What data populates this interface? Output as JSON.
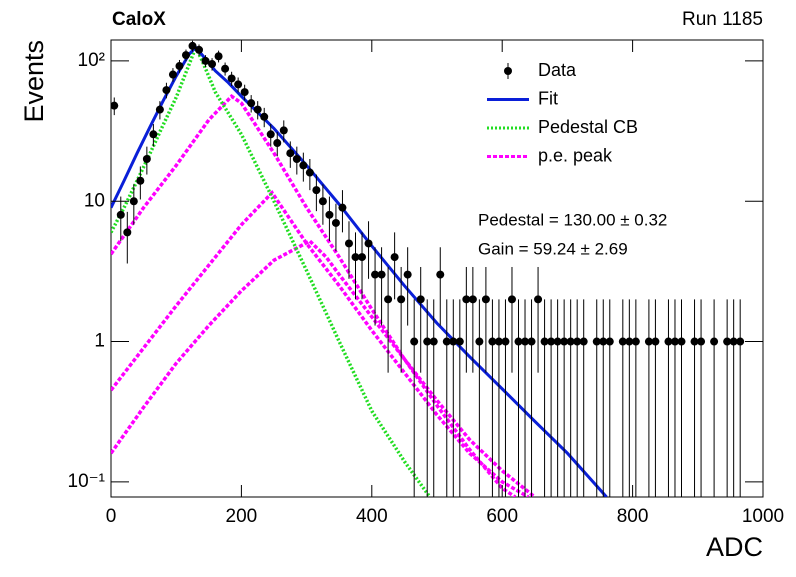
{
  "chart_data": {
    "type": "histogram-fit",
    "title": "CaloX",
    "subtitle": "Run 1185",
    "x_label": "ADC",
    "y_label": "Events",
    "annotations": [
      "Pedestal = 130.00 ± 0.32",
      "Gain = 59.24 ± 2.69"
    ],
    "log_y": true,
    "xlim": [
      0,
      1000
    ],
    "xticks": [
      0,
      200,
      400,
      600,
      800,
      1000
    ],
    "ylim": [
      0.078,
      141
    ],
    "yticks": [
      {
        "value": 0.1,
        "label": "10⁻¹"
      },
      1,
      10,
      {
        "value": 100,
        "label": "10²"
      }
    ],
    "series": [
      {
        "name": "Data",
        "style": "points",
        "color": "#000000",
        "x": [
          5,
          15,
          25,
          35,
          45,
          55,
          65,
          75,
          85,
          95,
          105,
          115,
          125,
          135,
          145,
          155,
          165,
          175,
          185,
          195,
          205,
          215,
          225,
          235,
          245,
          255,
          265,
          275,
          285,
          295,
          305,
          315,
          325,
          335,
          345,
          355,
          365,
          375,
          385,
          395,
          405,
          415,
          425,
          435,
          445,
          455,
          465,
          475,
          485,
          495,
          505,
          515,
          525,
          535,
          545,
          555,
          565,
          575,
          585,
          595,
          605,
          615,
          625,
          635,
          645,
          655,
          665,
          675,
          685,
          695,
          705,
          715,
          725,
          735,
          745,
          755,
          765,
          775,
          785,
          795,
          805,
          815,
          825,
          835,
          845,
          855,
          865,
          875,
          885,
          895,
          905,
          915,
          925,
          935,
          945,
          955,
          965,
          975,
          985,
          995
        ],
        "values": [
          48,
          8,
          6,
          10,
          14,
          20,
          30,
          45,
          62,
          80,
          92,
          110,
          128,
          120,
          100,
          95,
          108,
          88,
          75,
          68,
          60,
          50,
          45,
          40,
          30,
          26,
          32,
          22,
          20,
          18,
          16,
          12,
          10,
          8,
          7,
          9,
          5,
          4,
          4,
          5,
          3,
          3,
          2,
          4,
          2,
          3,
          1,
          2,
          1,
          1,
          3,
          1,
          1,
          1,
          2,
          2,
          1,
          2,
          1,
          1,
          1,
          2,
          1,
          1,
          1,
          2,
          1,
          1,
          1,
          1,
          1,
          1,
          1,
          null,
          1,
          1,
          1,
          null,
          1,
          1,
          1,
          null,
          1,
          1,
          null,
          1,
          1,
          1,
          null,
          1,
          1,
          null,
          1,
          null,
          1,
          1,
          1,
          null,
          null,
          null
        ],
        "errors": [
          6.9,
          2.8,
          2.4,
          3.2,
          3.7,
          4.5,
          5.5,
          6.7,
          7.9,
          8.9,
          9.6,
          10.5,
          11.3,
          11,
          10,
          9.7,
          10.4,
          9.4,
          8.7,
          8.2,
          7.7,
          7.1,
          6.7,
          6.3,
          5.5,
          5.1,
          5.7,
          4.7,
          4.5,
          4.2,
          4,
          3.5,
          3.2,
          2.8,
          2.6,
          3,
          2.2,
          2,
          2,
          2.2,
          1.7,
          1.7,
          1.4,
          2,
          1.4,
          1.7,
          1,
          1.4,
          1,
          1,
          1.7,
          1,
          1,
          1,
          1.4,
          1.4,
          1,
          1.4,
          1,
          1,
          1,
          1.4,
          1,
          1,
          1,
          1.4,
          1,
          1,
          1,
          1,
          1,
          1,
          1,
          null,
          1,
          1,
          1,
          null,
          1,
          1,
          1,
          null,
          1,
          1,
          null,
          1,
          1,
          1,
          null,
          1,
          1,
          null,
          1,
          null,
          1,
          1,
          1,
          null,
          null,
          null
        ]
      },
      {
        "name": "Fit",
        "style": "solid",
        "color": "#0a1fd8",
        "x": [
          0,
          20,
          40,
          60,
          80,
          100,
          120,
          130,
          140,
          160,
          180,
          200,
          250,
          300,
          350,
          400,
          450,
          500,
          550,
          600,
          650,
          700,
          750,
          760
        ],
        "values": [
          9,
          14,
          22,
          34,
          52,
          78,
          112,
          125,
          110,
          85,
          70,
          56,
          33,
          18,
          9.5,
          4.8,
          2.5,
          1.35,
          0.78,
          0.46,
          0.27,
          0.16,
          0.088,
          0.078
        ]
      },
      {
        "name": "Pedestal CB",
        "style": "dotted",
        "color": "#22dd22",
        "x": [
          0,
          20,
          40,
          60,
          80,
          100,
          120,
          130,
          140,
          160,
          200,
          250,
          300,
          350,
          400,
          450,
          489
        ],
        "values": [
          6,
          9,
          14,
          22,
          35,
          55,
          95,
          125,
          100,
          60,
          30,
          10,
          3.2,
          1,
          0.32,
          0.14,
          0.078
        ]
      },
      {
        "name": "p.e. peak",
        "style": "dashed",
        "color": "#ff00ff",
        "curves": [
          {
            "x": [
              0,
              50,
              100,
              150,
              185,
              200,
              250,
              300,
              350,
              400,
              450,
              500,
              550,
              600,
              620
            ],
            "values": [
              4.2,
              9,
              18,
              38,
              56,
              50,
              22,
              9,
              4,
              1.7,
              0.75,
              0.35,
              0.17,
              0.09,
              0.078
            ]
          },
          {
            "x": [
              0,
              50,
              100,
              150,
              200,
              247,
              270,
              300,
              350,
              400,
              450,
              500,
              550,
              600,
              640
            ],
            "values": [
              0.45,
              0.9,
              1.8,
              3.5,
              6.8,
              11.5,
              8,
              5,
              2.5,
              1.2,
              0.6,
              0.3,
              0.16,
              0.1,
              0.078
            ]
          },
          {
            "x": [
              0,
              50,
              100,
              150,
              200,
              250,
              305,
              330,
              350,
              400,
              450,
              500,
              550,
              600,
              650
            ],
            "values": [
              0.16,
              0.34,
              0.7,
              1.3,
              2.3,
              3.8,
              5.2,
              4,
              3,
              1.5,
              0.75,
              0.38,
              0.2,
              0.12,
              0.078
            ]
          }
        ]
      }
    ]
  }
}
